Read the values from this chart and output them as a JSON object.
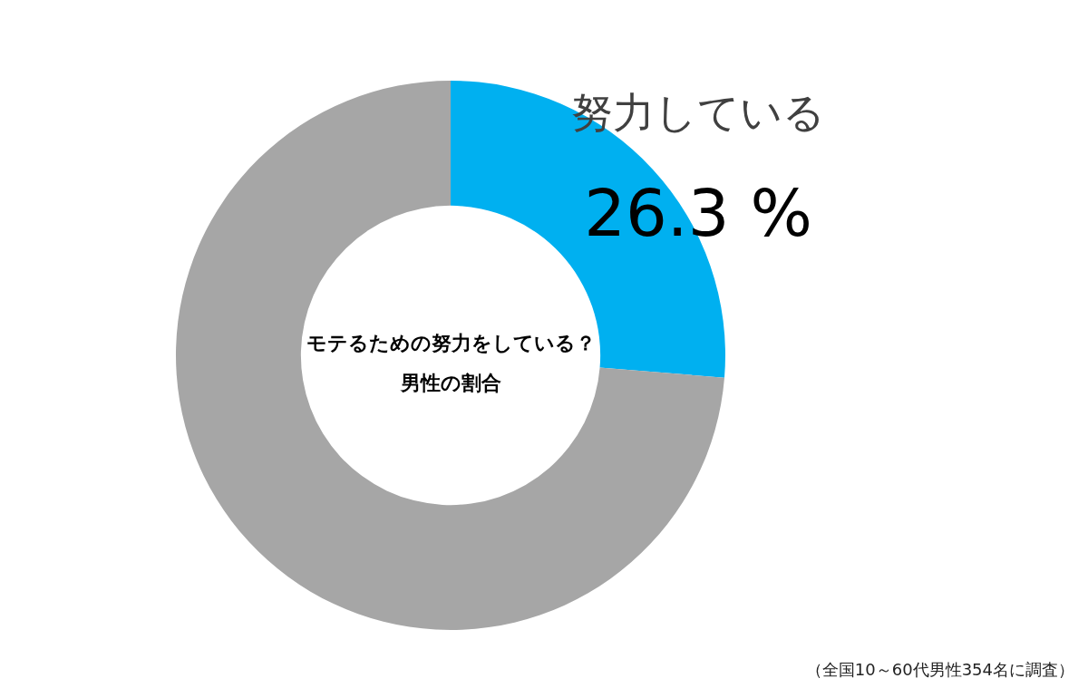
{
  "chart_data": {
    "type": "donut",
    "title": "モテるための努力をしている？",
    "subtitle": "男性の割合",
    "categories": [
      "努力している",
      null
    ],
    "values": [
      26.3,
      73.7
    ],
    "colors": [
      "#00b0f0",
      "#a6a6a6"
    ],
    "value_labels": [
      "26.3 %",
      null
    ],
    "annotations": [
      "（全国10～60代男性354名に調査）"
    ]
  }
}
